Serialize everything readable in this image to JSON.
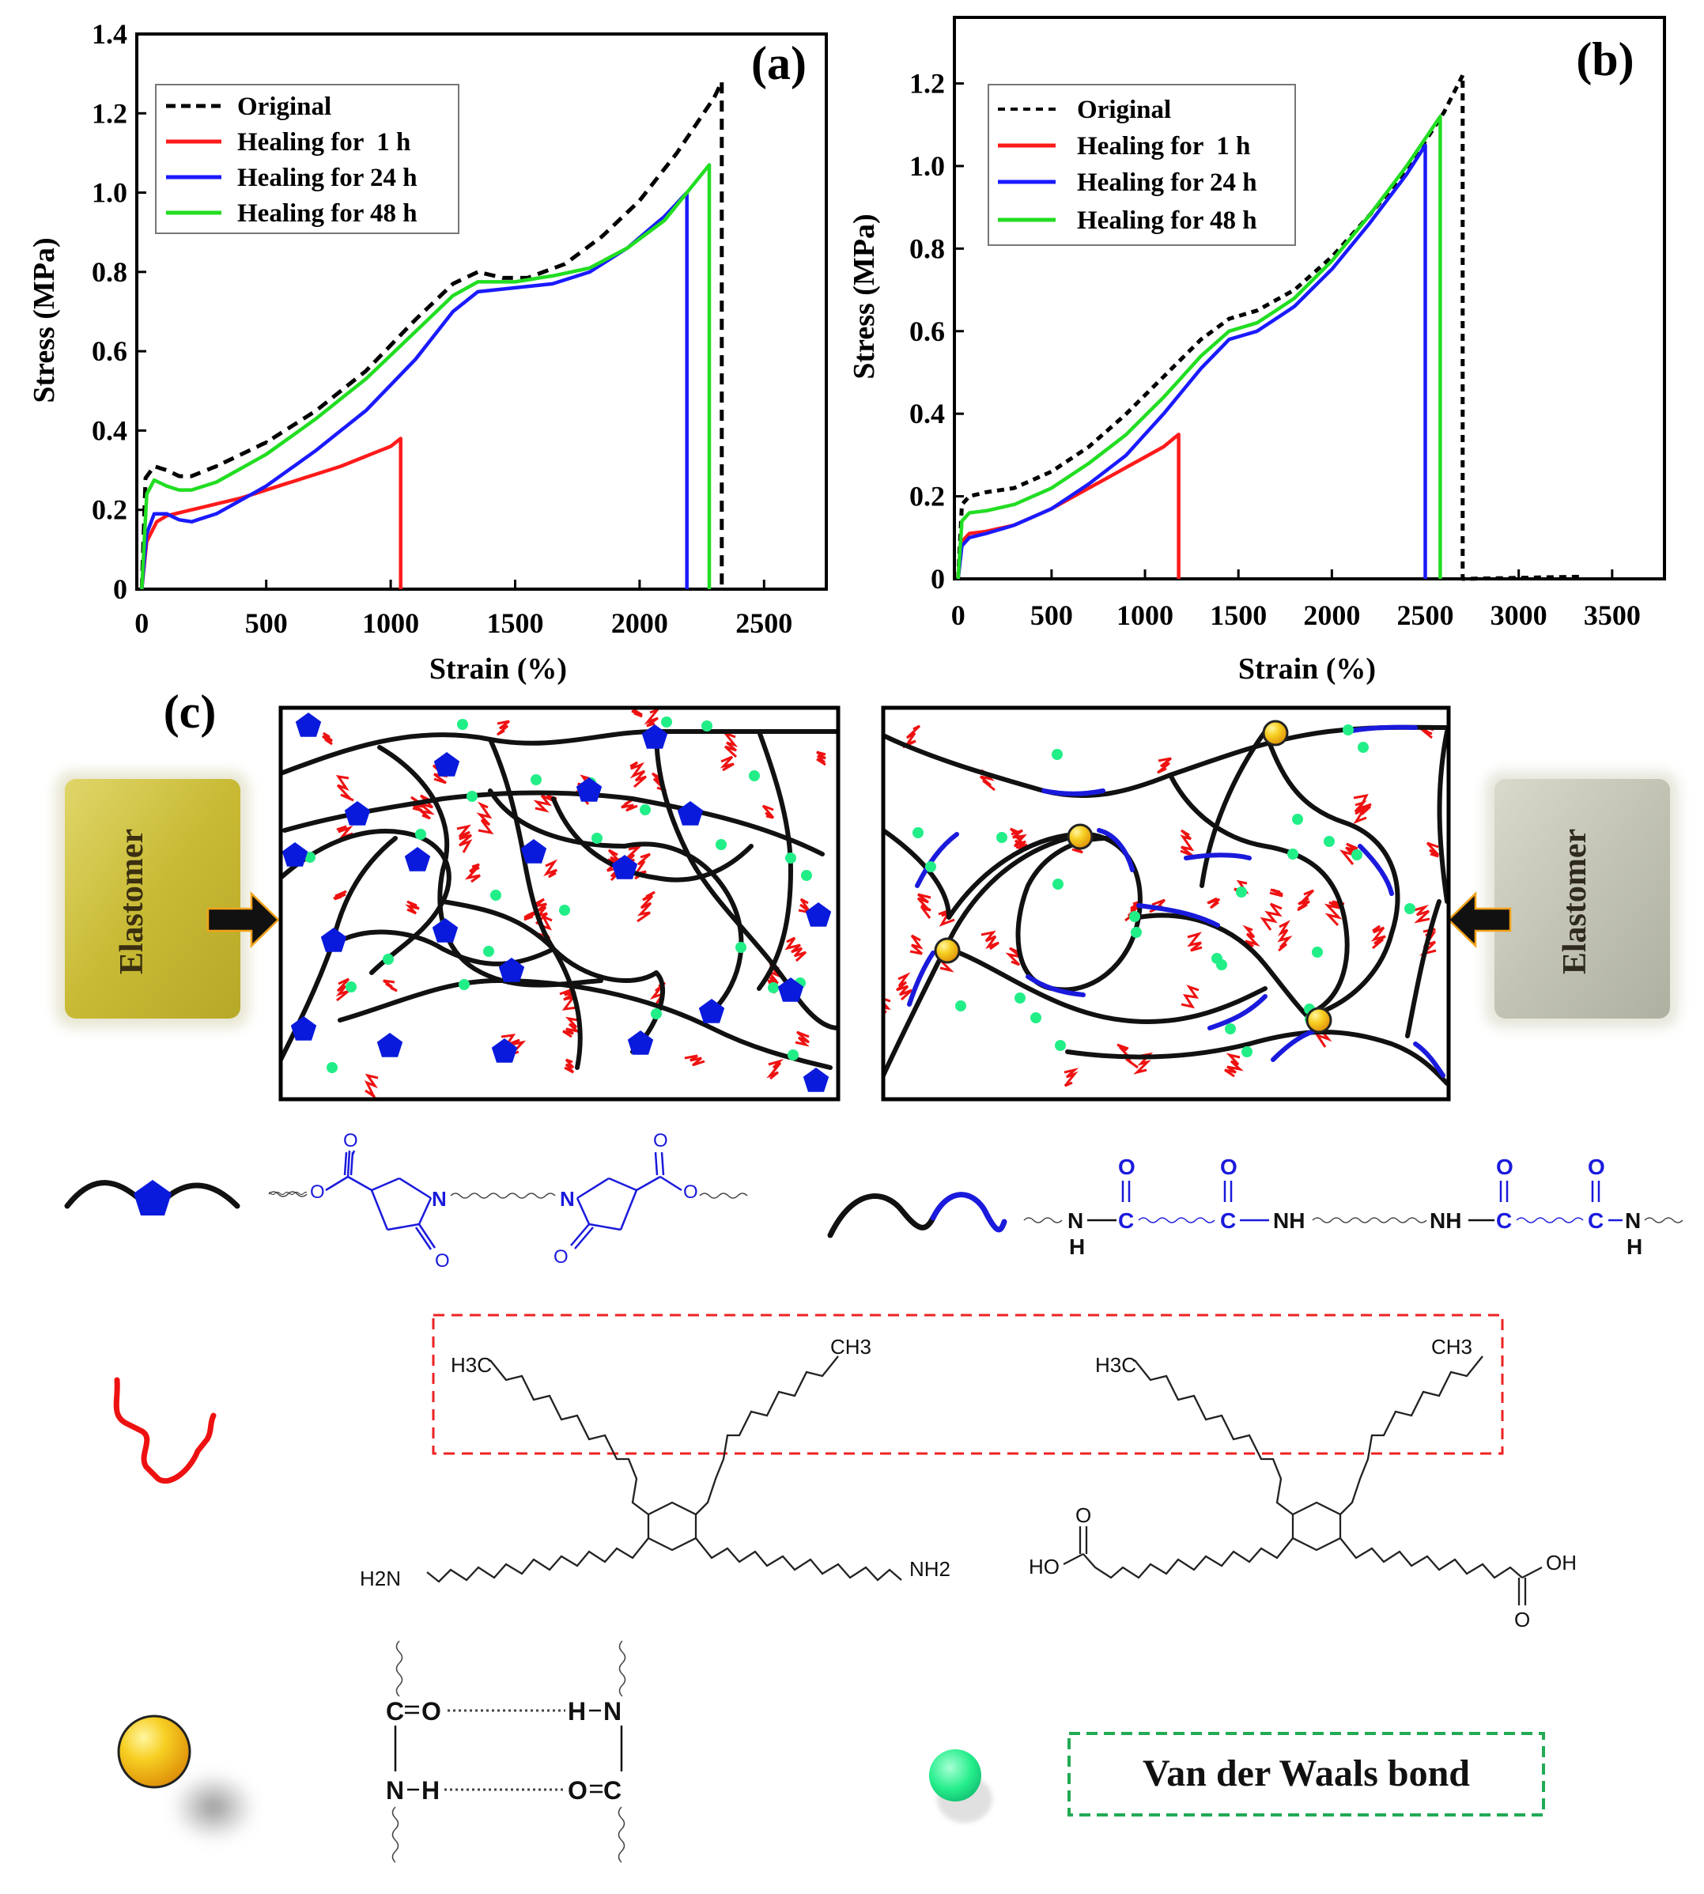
{
  "chart_data": [
    {
      "panel_label": "(a)",
      "type": "line",
      "xlabel": "Strain (%)",
      "ylabel": "Stress (MPa)",
      "xlim": [
        -20,
        2750
      ],
      "ylim": [
        0,
        1.4
      ],
      "xticks": [
        0,
        500,
        1000,
        1500,
        2000,
        2500
      ],
      "yticks": [
        0,
        0.2,
        0.4,
        0.6,
        0.8,
        1.0,
        1.2,
        1.4
      ],
      "xtick_labels": [
        "0",
        "500",
        "1000",
        "1500",
        "2000",
        "2500"
      ],
      "ytick_labels": [
        "0",
        "0.2",
        "0.4",
        "0.6",
        "0.8",
        "1.0",
        "1.2",
        "1.4"
      ],
      "legend_position": "top-left",
      "series": [
        {
          "name": "Original",
          "color": "#000000",
          "dash": true,
          "x": [
            0,
            15,
            50,
            100,
            150,
            200,
            300,
            500,
            700,
            900,
            1100,
            1250,
            1350,
            1450,
            1550,
            1700,
            1850,
            2000,
            2150,
            2300,
            2330,
            2330
          ],
          "y": [
            0,
            0.28,
            0.31,
            0.3,
            0.285,
            0.285,
            0.31,
            0.37,
            0.45,
            0.55,
            0.68,
            0.77,
            0.8,
            0.785,
            0.785,
            0.82,
            0.89,
            0.98,
            1.1,
            1.24,
            1.28,
            0
          ]
        },
        {
          "name": "Healing for  1 h",
          "color": "#ff1a1a",
          "dash": false,
          "x": [
            0,
            20,
            60,
            100,
            200,
            400,
            600,
            800,
            1000,
            1040,
            1040
          ],
          "y": [
            0,
            0.12,
            0.17,
            0.185,
            0.2,
            0.23,
            0.27,
            0.31,
            0.36,
            0.38,
            0
          ]
        },
        {
          "name": "Healing for 24 h",
          "color": "#1a1aff",
          "dash": false,
          "x": [
            0,
            20,
            50,
            100,
            150,
            200,
            300,
            500,
            700,
            900,
            1100,
            1250,
            1350,
            1500,
            1650,
            1800,
            1950,
            2100,
            2190,
            2190
          ],
          "y": [
            0,
            0.14,
            0.19,
            0.19,
            0.175,
            0.17,
            0.19,
            0.26,
            0.35,
            0.45,
            0.58,
            0.7,
            0.75,
            0.76,
            0.77,
            0.8,
            0.86,
            0.94,
            1.0,
            0
          ]
        },
        {
          "name": "Healing for 48 h",
          "color": "#22dd22",
          "dash": false,
          "x": [
            0,
            20,
            50,
            100,
            150,
            200,
            300,
            500,
            700,
            900,
            1100,
            1250,
            1350,
            1500,
            1650,
            1800,
            1950,
            2100,
            2280,
            2280
          ],
          "y": [
            0,
            0.24,
            0.275,
            0.26,
            0.25,
            0.25,
            0.27,
            0.34,
            0.43,
            0.53,
            0.65,
            0.74,
            0.775,
            0.775,
            0.79,
            0.81,
            0.86,
            0.93,
            1.07,
            0
          ]
        }
      ]
    },
    {
      "panel_label": "(b)",
      "type": "line",
      "xlabel": "Strain (%)",
      "ylabel": "Stress (MPa)",
      "xlim": [
        -20,
        3780
      ],
      "ylim": [
        0,
        1.36
      ],
      "xticks": [
        0,
        500,
        1000,
        1500,
        2000,
        2500,
        3000,
        3500
      ],
      "yticks": [
        0,
        0.2,
        0.4,
        0.6,
        0.8,
        1.0,
        1.2
      ],
      "xtick_labels": [
        "0",
        "500",
        "1000",
        "1500",
        "2000",
        "2500",
        "3000",
        "3500"
      ],
      "ytick_labels": [
        "0",
        "0.2",
        "0.4",
        "0.6",
        "0.8",
        "1.0",
        "1.2"
      ],
      "legend_position": "top-left",
      "series": [
        {
          "name": "Original",
          "color": "#000000",
          "dash": true,
          "x": [
            0,
            20,
            60,
            150,
            300,
            500,
            700,
            900,
            1100,
            1300,
            1450,
            1600,
            1800,
            2000,
            2200,
            2400,
            2600,
            2700,
            2700,
            3300,
            3340
          ],
          "y": [
            0,
            0.18,
            0.2,
            0.21,
            0.22,
            0.26,
            0.32,
            0.4,
            0.49,
            0.58,
            0.63,
            0.65,
            0.7,
            0.78,
            0.88,
            0.99,
            1.13,
            1.22,
            0,
            0.005,
            0.005
          ]
        },
        {
          "name": "Healing for  1 h",
          "color": "#ff1a1a",
          "dash": false,
          "x": [
            0,
            20,
            60,
            150,
            300,
            500,
            700,
            900,
            1100,
            1180,
            1180
          ],
          "y": [
            0,
            0.09,
            0.11,
            0.115,
            0.13,
            0.17,
            0.22,
            0.27,
            0.32,
            0.35,
            0
          ]
        },
        {
          "name": "Healing for 24 h",
          "color": "#1a1aff",
          "dash": false,
          "x": [
            0,
            20,
            60,
            150,
            300,
            500,
            700,
            900,
            1100,
            1300,
            1450,
            1600,
            1800,
            2000,
            2200,
            2400,
            2500,
            2500
          ],
          "y": [
            0,
            0.08,
            0.1,
            0.11,
            0.13,
            0.17,
            0.23,
            0.3,
            0.4,
            0.51,
            0.58,
            0.6,
            0.66,
            0.75,
            0.86,
            0.98,
            1.05,
            0
          ]
        },
        {
          "name": "Healing for 48 h",
          "color": "#22dd22",
          "dash": false,
          "x": [
            0,
            20,
            60,
            150,
            300,
            500,
            700,
            900,
            1100,
            1300,
            1450,
            1600,
            1800,
            2000,
            2200,
            2400,
            2580,
            2580
          ],
          "y": [
            0,
            0.14,
            0.16,
            0.165,
            0.18,
            0.22,
            0.28,
            0.35,
            0.44,
            0.54,
            0.6,
            0.62,
            0.68,
            0.77,
            0.88,
            1.0,
            1.12,
            0
          ]
        }
      ]
    }
  ],
  "panel_c": {
    "label": "(c)",
    "left_sample_label": "Elastomer",
    "right_sample_label": "Elastomer",
    "left_sample_color": "#c9bb3c",
    "right_sample_color": "#c4c4b4"
  },
  "legend_key": {
    "pyrrolidone_left": {
      "O1": "O",
      "O2": "O",
      "N": "N",
      "O3": "O"
    },
    "pyrrolidone_right": {
      "N": "N",
      "O1": "O",
      "O2": "O",
      "O3": "O"
    },
    "amide_chain": {
      "nh1_N": "N",
      "nh1_H": "H",
      "c1_O": "O",
      "c1_C": "C",
      "c2_O": "O",
      "c2_C": "C",
      "nh2": "NH",
      "nh3": "NH",
      "c3_O": "O",
      "c3_C": "C",
      "c4_O": "O",
      "c4_C": "C",
      "nh4_N": "N",
      "nh4_H": "H"
    },
    "dimer_amine": {
      "ch3_left": "H3C",
      "ch3_right": "CH3",
      "amine_left": "H2N",
      "amine_right": "NH2"
    },
    "dimer_acid": {
      "ch3_left": "H3C",
      "ch3_right": "CH3",
      "oh_left": "HO",
      "oh_right": "OH",
      "o_top": "O",
      "o_bottom": "O"
    },
    "hbond": {
      "tl_C": "C",
      "tl_O": "O",
      "tr_H": "H",
      "tr_N": "N",
      "bl_N": "N",
      "bl_H": "H",
      "br_O": "O",
      "br_C": "C"
    },
    "vdw_label": "Van der Waals bond",
    "colors": {
      "pentagon": "#0a1adc",
      "red_chain": "#ee1111",
      "yellow": "#f4c21c",
      "green": "#22ee88",
      "blue": "#1a1adc",
      "dash_red": "#ee2222",
      "dash_green": "#22aa55"
    }
  }
}
